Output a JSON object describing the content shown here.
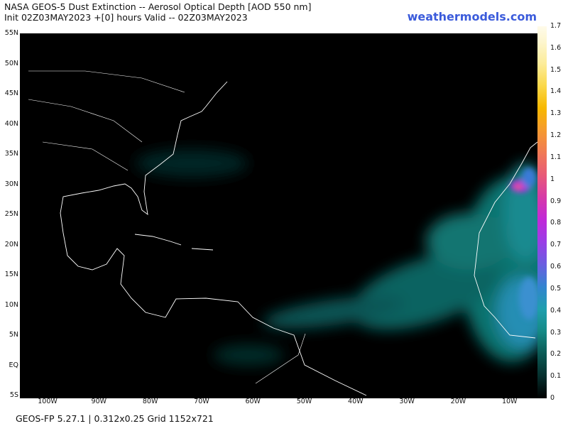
{
  "header": {
    "title": "NASA GEOS-5 Dust Extinction -- Aerosol Optical Depth [AOD 550 nm]",
    "subtitle": "Init 02Z03MAY2023 +[0] hours Valid -- 02Z03MAY2023",
    "site": "weathermodels.com"
  },
  "map": {
    "lat_labels": [
      "55N",
      "50N",
      "45N",
      "40N",
      "35N",
      "30N",
      "25N",
      "20N",
      "15N",
      "10N",
      "5N",
      "EQ",
      "5S"
    ],
    "lon_labels": [
      "100W",
      "90W",
      "80W",
      "70W",
      "60W",
      "50W",
      "40W",
      "30W",
      "20W",
      "10W"
    ]
  },
  "colorbar": {
    "ticks": [
      0,
      0.1,
      0.2,
      0.3,
      0.4,
      0.5,
      0.6,
      0.7,
      0.8,
      0.9,
      1,
      1.1,
      1.2,
      1.3,
      1.4,
      1.5,
      1.6,
      1.7
    ]
  },
  "footer": "GEOS-FP 5.27.1 | 0.312x0.25 Grid 1152x721"
}
